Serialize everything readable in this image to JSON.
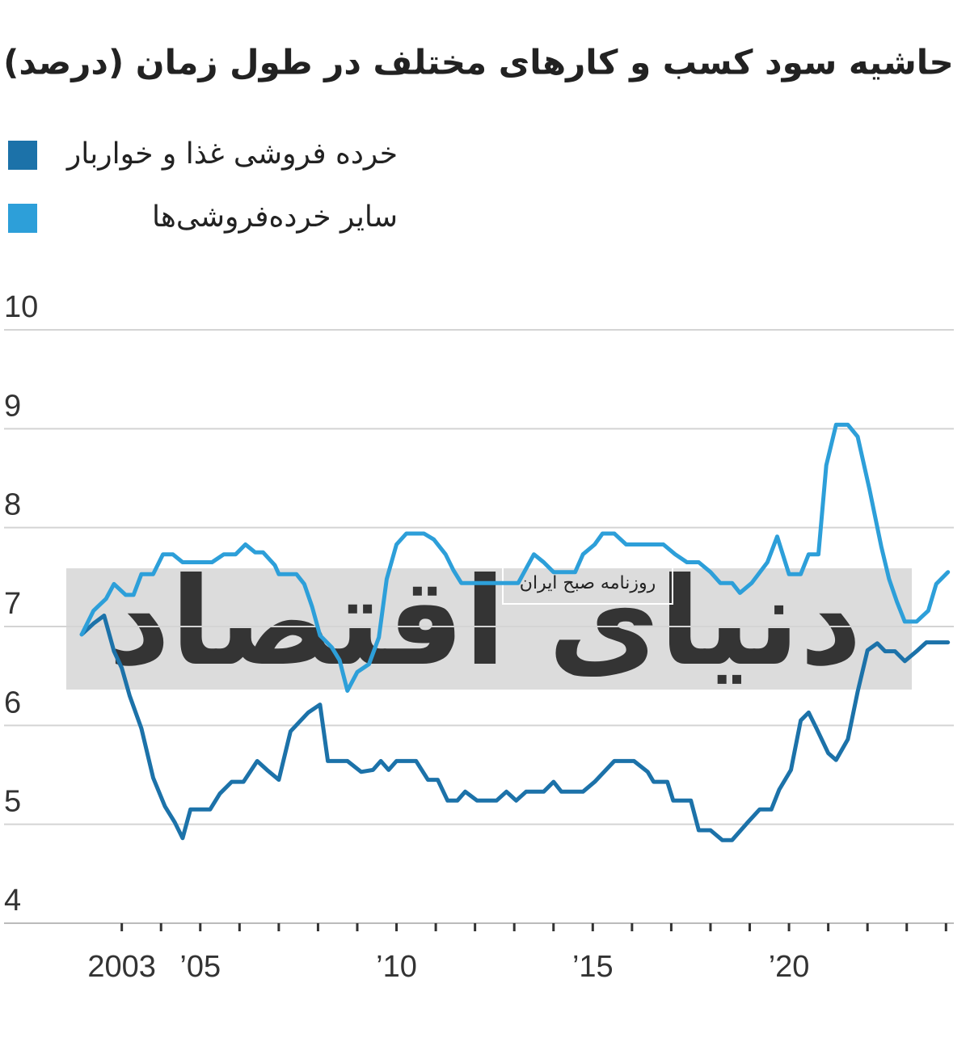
{
  "chart_data": {
    "type": "line",
    "title": "حاشیه سود کسب و کارهای مختلف در طول زمان (درصد)",
    "watermark": [
      "دنیای اقتصاد",
      "روزنامه صبح ایران"
    ],
    "legend_position": "top-left",
    "grid": true,
    "xlim": [
      2000,
      2024.2
    ],
    "xticks": [
      {
        "value": 2003,
        "label": "2003"
      },
      {
        "value": 2005,
        "label": "’05"
      },
      {
        "value": 2010,
        "label": "’10"
      },
      {
        "value": 2015,
        "label": "’15"
      },
      {
        "value": 2020,
        "label": "’20"
      }
    ],
    "xminor_ticks": [
      2004,
      2006,
      2007,
      2008,
      2009,
      2011,
      2012,
      2013,
      2014,
      2016,
      2017,
      2018,
      2019,
      2021,
      2022,
      2023,
      2024
    ],
    "ylim": [
      4,
      10
    ],
    "yticks": [
      4,
      5,
      6,
      7,
      8,
      9,
      10
    ],
    "series": [
      {
        "name": "خرده فروشی غذا و خواربار",
        "color": "#1c72a9",
        "x": [
          2001.98,
          2002.28,
          2002.55,
          2002.8,
          2003.0,
          2003.2,
          2003.5,
          2003.8,
          2004.1,
          2004.35,
          2004.55,
          2004.75,
          2005.25,
          2005.5,
          2005.8,
          2006.1,
          2006.45,
          2006.7,
          2007.0,
          2007.3,
          2007.75,
          2008.05,
          2008.25,
          2008.75,
          2009.1,
          2009.4,
          2009.6,
          2009.8,
          2010.0,
          2010.5,
          2010.8,
          2011.05,
          2011.3,
          2011.55,
          2011.75,
          2012.05,
          2012.55,
          2012.8,
          2013.05,
          2013.3,
          2013.75,
          2014.0,
          2014.2,
          2014.75,
          2015.05,
          2015.55,
          2016.05,
          2016.4,
          2016.55,
          2016.9,
          2017.05,
          2017.5,
          2017.7,
          2018.0,
          2018.3,
          2018.55,
          2018.95,
          2019.25,
          2019.55,
          2019.75,
          2020.05,
          2020.3,
          2020.5,
          2020.7,
          2021.0,
          2021.2,
          2021.5,
          2021.75,
          2022.0,
          2022.25,
          2022.45,
          2022.7,
          2022.95,
          2023.25,
          2023.5,
          2024.05
        ],
        "values": [
          6.92,
          7.03,
          7.11,
          6.75,
          6.58,
          6.3,
          5.97,
          5.47,
          5.18,
          5.02,
          4.86,
          5.15,
          5.15,
          5.31,
          5.43,
          5.43,
          5.64,
          5.55,
          5.45,
          5.94,
          6.13,
          6.21,
          5.64,
          5.64,
          5.53,
          5.55,
          5.64,
          5.55,
          5.64,
          5.64,
          5.45,
          5.45,
          5.24,
          5.24,
          5.33,
          5.24,
          5.24,
          5.33,
          5.24,
          5.33,
          5.33,
          5.43,
          5.33,
          5.33,
          5.43,
          5.64,
          5.64,
          5.53,
          5.43,
          5.43,
          5.24,
          5.24,
          4.94,
          4.94,
          4.84,
          4.84,
          5.02,
          5.15,
          5.15,
          5.35,
          5.55,
          6.05,
          6.13,
          5.97,
          5.72,
          5.65,
          5.86,
          6.34,
          6.76,
          6.83,
          6.75,
          6.75,
          6.65,
          6.75,
          6.84,
          6.84
        ]
      },
      {
        "name": "سایر خرده‌فروشی‌ها",
        "color": "#2d9fd9",
        "x": [
          2001.98,
          2002.28,
          2002.6,
          2002.8,
          2003.1,
          2003.3,
          2003.5,
          2003.8,
          2004.05,
          2004.3,
          2004.55,
          2005.3,
          2005.6,
          2005.9,
          2006.15,
          2006.4,
          2006.6,
          2006.9,
          2007.0,
          2007.45,
          2007.65,
          2007.85,
          2008.05,
          2008.35,
          2008.55,
          2008.75,
          2009.0,
          2009.3,
          2009.55,
          2009.75,
          2010.0,
          2010.25,
          2010.7,
          2010.95,
          2011.25,
          2011.45,
          2011.65,
          2013.1,
          2013.5,
          2013.75,
          2014.0,
          2014.55,
          2014.75,
          2015.05,
          2015.25,
          2015.55,
          2015.85,
          2016.8,
          2017.1,
          2017.4,
          2017.7,
          2018.0,
          2018.25,
          2018.55,
          2018.75,
          2019.05,
          2019.45,
          2019.7,
          2020.0,
          2020.3,
          2020.5,
          2020.75,
          2020.95,
          2021.2,
          2021.5,
          2021.75,
          2022.05,
          2022.35,
          2022.55,
          2022.75,
          2022.95,
          2023.25,
          2023.55,
          2023.75,
          2024.05
        ],
        "values": [
          6.92,
          7.16,
          7.28,
          7.43,
          7.32,
          7.32,
          7.53,
          7.53,
          7.73,
          7.73,
          7.65,
          7.65,
          7.73,
          7.73,
          7.83,
          7.75,
          7.75,
          7.62,
          7.53,
          7.53,
          7.43,
          7.2,
          6.91,
          6.79,
          6.66,
          6.35,
          6.54,
          6.62,
          6.89,
          7.48,
          7.83,
          7.94,
          7.94,
          7.88,
          7.73,
          7.57,
          7.44,
          7.44,
          7.73,
          7.65,
          7.55,
          7.55,
          7.73,
          7.83,
          7.94,
          7.94,
          7.83,
          7.83,
          7.73,
          7.65,
          7.65,
          7.55,
          7.44,
          7.44,
          7.34,
          7.44,
          7.65,
          7.91,
          7.53,
          7.53,
          7.73,
          7.73,
          8.63,
          9.04,
          9.04,
          8.92,
          8.39,
          7.81,
          7.48,
          7.25,
          7.05,
          7.05,
          7.16,
          7.43,
          7.55
        ]
      }
    ]
  }
}
